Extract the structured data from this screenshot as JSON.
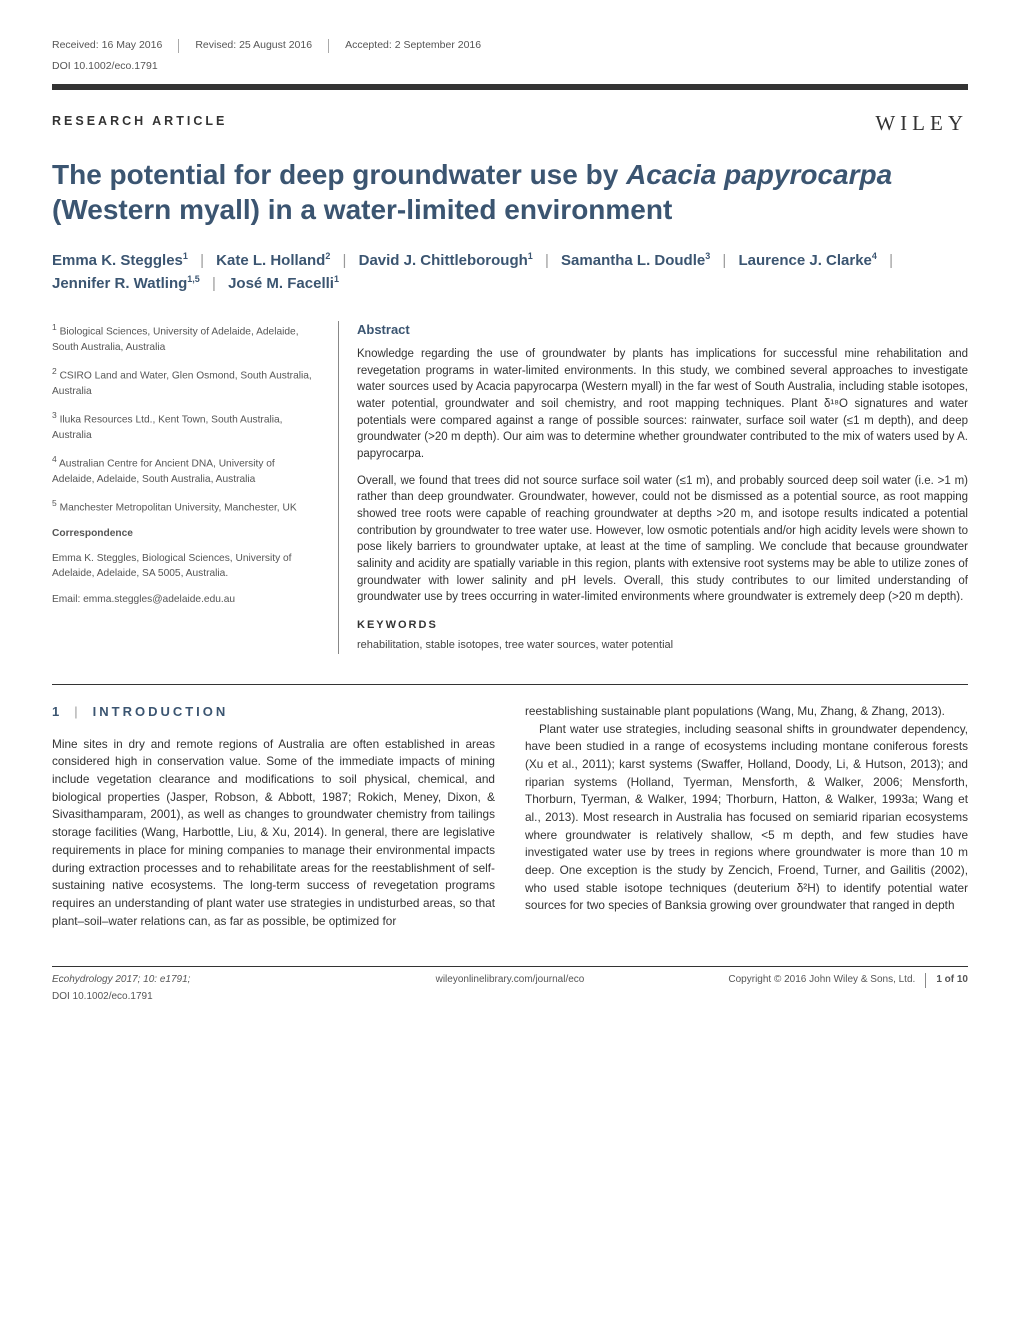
{
  "header": {
    "received": "Received: 16 May 2016",
    "revised": "Revised: 25 August 2016",
    "accepted": "Accepted: 2 September 2016",
    "doi": "DOI 10.1002/eco.1791",
    "publisher": "WILEY",
    "article_type": "RESEARCH ARTICLE"
  },
  "title": "The potential for deep groundwater use by Acacia papyrocarpa (Western myall) in a water-limited environment",
  "authors": [
    {
      "name": "Emma K. Steggles",
      "aff": "1"
    },
    {
      "name": "Kate L. Holland",
      "aff": "2"
    },
    {
      "name": "David J. Chittleborough",
      "aff": "1"
    },
    {
      "name": "Samantha L. Doudle",
      "aff": "3"
    },
    {
      "name": "Laurence J. Clarke",
      "aff": "4"
    },
    {
      "name": "Jennifer R. Watling",
      "aff": "1,5"
    },
    {
      "name": "José M. Facelli",
      "aff": "1"
    }
  ],
  "affiliations": [
    "Biological Sciences, University of Adelaide, Adelaide, South Australia, Australia",
    "CSIRO Land and Water, Glen Osmond, South Australia, Australia",
    "Iluka Resources Ltd., Kent Town, South Australia, Australia",
    "Australian Centre for Ancient DNA, University of Adelaide, Adelaide, South Australia, Australia",
    "Manchester Metropolitan University, Manchester, UK"
  ],
  "correspondence": {
    "heading": "Correspondence",
    "text": "Emma K. Steggles, Biological Sciences, University of Adelaide, Adelaide, SA 5005, Australia.",
    "email_label": "Email: emma.steggles@adelaide.edu.au"
  },
  "abstract": {
    "heading": "Abstract",
    "para1": "Knowledge regarding the use of groundwater by plants has implications for successful mine rehabilitation and revegetation programs in water-limited environments. In this study, we combined several approaches to investigate water sources used by Acacia papyrocarpa (Western myall) in the far west of South Australia, including stable isotopes, water potential, groundwater and soil chemistry, and root mapping techniques. Plant δ¹⁸O signatures and water potentials were compared against a range of possible sources: rainwater, surface soil water (≤1 m depth), and deep groundwater (>20 m depth). Our aim was to determine whether groundwater contributed to the mix of waters used by A. papyrocarpa.",
    "para2": "Overall, we found that trees did not source surface soil water (≤1 m), and probably sourced deep soil water (i.e. >1 m) rather than deep groundwater. Groundwater, however, could not be dismissed as a potential source, as root mapping showed tree roots were capable of reaching groundwater at depths >20 m, and isotope results indicated a potential contribution by groundwater to tree water use. However, low osmotic potentials and/or high acidity levels were shown to pose likely barriers to groundwater uptake, at least at the time of sampling. We conclude that because groundwater salinity and acidity are spatially variable in this region, plants with extensive root systems may be able to utilize zones of groundwater with lower salinity and pH levels. Overall, this study contributes to our limited understanding of groundwater use by trees occurring in water-limited environments where groundwater is extremely deep (>20 m depth).",
    "kw_heading": "KEYWORDS",
    "keywords": "rehabilitation, stable isotopes, tree water sources, water potential"
  },
  "intro": {
    "heading_num": "1",
    "heading": "INTRODUCTION",
    "left_p1": "Mine sites in dry and remote regions of Australia are often established in areas considered high in conservation value. Some of the immediate impacts of mining include vegetation clearance and modifications to soil physical, chemical, and biological properties (Jasper, Robson, & Abbott, 1987; Rokich, Meney, Dixon, & Sivasithamparam, 2001), as well as changes to groundwater chemistry from tailings storage facilities (Wang, Harbottle, Liu, & Xu, 2014). In general, there are legislative requirements in place for mining companies to manage their environmental impacts during extraction processes and to rehabilitate areas for the reestablishment of self-sustaining native ecosystems. The long-term success of revegetation programs requires an understanding of plant water use strategies in undisturbed areas, so that plant–soil–water relations can, as far as possible, be optimized for",
    "right_p1": "reestablishing sustainable plant populations (Wang, Mu, Zhang, & Zhang, 2013).",
    "right_p2": "Plant water use strategies, including seasonal shifts in groundwater dependency, have been studied in a range of ecosystems including montane coniferous forests (Xu et al., 2011); karst systems (Swaffer, Holland, Doody, Li, & Hutson, 2013); and riparian systems (Holland, Tyerman, Mensforth, & Walker, 2006; Mensforth, Thorburn, Tyerman, & Walker, 1994; Thorburn, Hatton, & Walker, 1993a; Wang et al., 2013). Most research in Australia has focused on semiarid riparian ecosystems where groundwater is relatively shallow, <5 m depth, and few studies have investigated water use by trees in regions where groundwater is more than 10 m deep. One exception is the study by Zencich, Froend, Turner, and Gailitis (2002), who used stable isotope techniques (deuterium δ²H) to identify potential water sources for two species of Banksia growing over groundwater that ranged in depth"
  },
  "footer": {
    "left_line1": "Ecohydrology 2017; 10: e1791;",
    "left_line2": "DOI 10.1002/eco.1791",
    "center": "wileyonlinelibrary.com/journal/eco",
    "right_copyright": "Copyright © 2016 John Wiley & Sons, Ltd.",
    "page": "1 of 10"
  },
  "colors": {
    "heading_color": "#3b5571",
    "text_color": "#333333",
    "muted": "#555555",
    "rule": "#333333"
  }
}
